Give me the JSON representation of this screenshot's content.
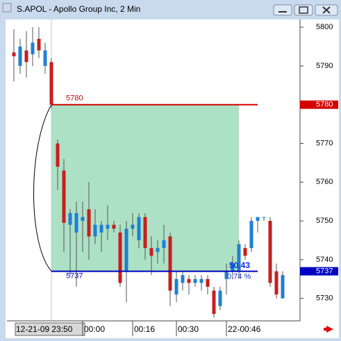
{
  "chart_data": {
    "type": "candlestick",
    "title": "S.APOL - Apollo Group Inc, 2 Min",
    "categories": [
      "12-21-09 23:50",
      null,
      null,
      null,
      null,
      null,
      null,
      null,
      null,
      null,
      null,
      null,
      "00:00",
      null,
      null,
      null,
      null,
      null,
      null,
      null,
      "00:16",
      null,
      null,
      null,
      null,
      null,
      null,
      "00:30",
      null,
      null,
      null,
      null,
      null,
      null,
      null,
      "22-00:46",
      null,
      null,
      null,
      null,
      null,
      null,
      null,
      null
    ],
    "open": [
      5793.5,
      5790,
      5794,
      5793,
      5797,
      5790,
      5791,
      5770,
      5763,
      5749,
      5747,
      5750,
      5753,
      5746,
      5747,
      5748,
      5749,
      5747,
      5737,
      5748,
      5745,
      5751,
      5743,
      5742,
      5743,
      5746,
      5731,
      5734,
      5735,
      5734,
      5734,
      5735,
      5732,
      5728,
      5735,
      5737,
      5737,
      5743,
      5743,
      5750,
      5751,
      5750,
      5737,
      5730
    ],
    "high": [
      5799.5,
      5797,
      5799,
      5800,
      5800,
      5796,
      5792,
      5771,
      5766,
      5753,
      5755,
      5755,
      5760,
      5753,
      5750,
      5754,
      5750,
      5749,
      5750,
      5752,
      5752,
      5752,
      5746,
      5745,
      5749,
      5747,
      5737,
      5737,
      5736,
      5736,
      5736,
      5736,
      5733,
      5733,
      5739,
      5741,
      5745,
      5744,
      5751,
      5751,
      5751,
      5751,
      5739,
      5737
    ],
    "low": [
      5786,
      5788,
      5787,
      5790,
      5792,
      5788,
      5779,
      5758,
      5742,
      5736,
      5733,
      5742,
      5740,
      5744,
      5742,
      5745,
      5747,
      5733,
      5729,
      5746,
      5743,
      5740,
      5736,
      5739,
      5739,
      5728,
      5729,
      5732,
      5731,
      5733,
      5732,
      5731,
      5725,
      5727,
      5731,
      5735,
      5735,
      5740,
      5742,
      5747,
      5750,
      5733,
      5730,
      5730
    ],
    "close": [
      5792.5,
      5795,
      5791,
      5796,
      5794,
      5794,
      5780,
      5764,
      5749.5,
      5752,
      5752,
      5751,
      5746,
      5749,
      5749,
      5749,
      5748,
      5734,
      5748,
      5749,
      5751,
      5743,
      5741,
      5743,
      5745,
      5732,
      5735,
      5736,
      5734,
      5735,
      5735,
      5733,
      5726,
      5732,
      5737,
      5739,
      5744,
      5741,
      5750,
      5751,
      5751,
      5734,
      5731,
      5736
    ],
    "up_color": "#1f7fd6",
    "down_color": "#c81e1e",
    "ylim": [
      5724.2,
      5802
    ],
    "yticks": [
      5730,
      5740,
      5750,
      5760,
      5770,
      5780,
      5790,
      5800
    ],
    "levels": [
      {
        "value": 5780,
        "label": "5780",
        "color": "#d40000"
      },
      {
        "value": 5737,
        "label": "5737",
        "color": "#0000c0"
      }
    ],
    "measure": {
      "change": "$0.43",
      "percent": "0.74 %",
      "color": "#9fdcbb"
    }
  }
}
